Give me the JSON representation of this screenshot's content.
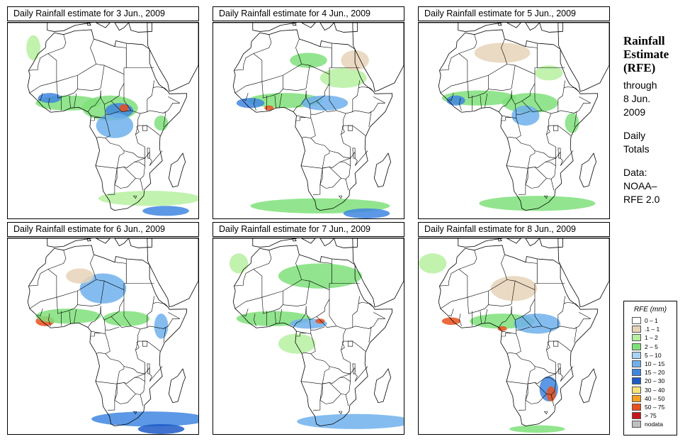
{
  "panels": [
    {
      "title": "Daily Rainfall estimate for  3 Jun., 2009",
      "date": "3 Jun., 2009"
    },
    {
      "title": "Daily Rainfall estimate for  4 Jun., 2009",
      "date": "4 Jun., 2009"
    },
    {
      "title": "Daily Rainfall estimate for  5 Jun., 2009",
      "date": "5 Jun., 2009"
    },
    {
      "title": "Daily Rainfall estimate for  6 Jun., 2009",
      "date": "6 Jun., 2009"
    },
    {
      "title": "Daily Rainfall estimate for  7 Jun., 2009",
      "date": "7 Jun., 2009"
    },
    {
      "title": "Daily Rainfall estimate for  8 Jun., 2009",
      "date": "8 Jun., 2009"
    }
  ],
  "sidebar": {
    "heading": [
      "Rainfall",
      "Estimate",
      "(RFE)"
    ],
    "through_label": "through",
    "through_date": [
      "8 Jun.",
      "2009"
    ],
    "period": [
      "Daily",
      "Totals"
    ],
    "source_label": "Data:",
    "source": [
      "NOAA–",
      "RFE 2.0"
    ]
  },
  "legend": {
    "title": "RFE (mm)",
    "items": [
      {
        "label": "0 – 1",
        "color": "#ffffff"
      },
      {
        "label": ".1 – 1",
        "color": "#e6d3b8"
      },
      {
        "label": "1 – 2",
        "color": "#b6f0a0"
      },
      {
        "label": "2 – 5",
        "color": "#7fe07a"
      },
      {
        "label": "5 – 10",
        "color": "#a8d4f5"
      },
      {
        "label": "10 – 15",
        "color": "#6fb0ec"
      },
      {
        "label": "15 – 20",
        "color": "#3f86e0"
      },
      {
        "label": "20 – 30",
        "color": "#1e5bc8"
      },
      {
        "label": "30 – 40",
        "color": "#f7e27a"
      },
      {
        "label": "40 – 50",
        "color": "#f5a020"
      },
      {
        "label": "50 – 75",
        "color": "#e8501c"
      },
      {
        "label": "> 75",
        "color": "#c8141c"
      },
      {
        "label": "nodata",
        "color": "#c0c0c0"
      }
    ]
  },
  "rain_fields": [
    [
      {
        "lon": 0,
        "lat": 8,
        "rx": 14,
        "ry": 3,
        "cls": 3
      },
      {
        "lon": 18,
        "lat": 6,
        "rx": 12,
        "ry": 5,
        "cls": 3
      },
      {
        "lon": 22,
        "lat": 5,
        "rx": 6,
        "ry": 3,
        "cls": 6
      },
      {
        "lon": 24,
        "lat": 6,
        "rx": 2,
        "ry": 1.5,
        "cls": 10
      },
      {
        "lon": 20,
        "lat": -1,
        "rx": 8,
        "ry": 5,
        "cls": 5
      },
      {
        "lon": -8,
        "lat": 10,
        "rx": 5,
        "ry": 2,
        "cls": 6
      },
      {
        "lon": 40,
        "lat": 0,
        "rx": 3,
        "ry": 3,
        "cls": 3
      },
      {
        "lon": 35,
        "lat": -30,
        "rx": 22,
        "ry": 3,
        "cls": 2
      },
      {
        "lon": 42,
        "lat": -35,
        "rx": 10,
        "ry": 2,
        "cls": 6
      },
      {
        "lon": -15,
        "lat": 30,
        "rx": 3,
        "ry": 5,
        "cls": 2
      }
    ],
    [
      {
        "lon": 5,
        "lat": 9,
        "rx": 16,
        "ry": 3,
        "cls": 3
      },
      {
        "lon": -10,
        "lat": 8,
        "rx": 6,
        "ry": 2,
        "cls": 6
      },
      {
        "lon": -2,
        "lat": 6,
        "rx": 2,
        "ry": 1,
        "cls": 10
      },
      {
        "lon": 22,
        "lat": 8,
        "rx": 10,
        "ry": 3,
        "cls": 5
      },
      {
        "lon": 30,
        "lat": 18,
        "rx": 10,
        "ry": 4,
        "cls": 2
      },
      {
        "lon": 15,
        "lat": 25,
        "rx": 8,
        "ry": 3,
        "cls": 3
      },
      {
        "lon": 20,
        "lat": -33,
        "rx": 30,
        "ry": 3,
        "cls": 3
      },
      {
        "lon": 40,
        "lat": -36,
        "rx": 10,
        "ry": 2,
        "cls": 6
      },
      {
        "lon": 35,
        "lat": 25,
        "rx": 6,
        "ry": 4,
        "cls": 1
      }
    ],
    [
      {
        "lon": 0,
        "lat": 10,
        "rx": 16,
        "ry": 3,
        "cls": 3
      },
      {
        "lon": 22,
        "lat": 8,
        "rx": 12,
        "ry": 4,
        "cls": 3
      },
      {
        "lon": 20,
        "lat": 3,
        "rx": 6,
        "ry": 4,
        "cls": 5
      },
      {
        "lon": -10,
        "lat": 9,
        "rx": 4,
        "ry": 2,
        "cls": 6
      },
      {
        "lon": 30,
        "lat": 20,
        "rx": 6,
        "ry": 3,
        "cls": 2
      },
      {
        "lon": 10,
        "lat": 28,
        "rx": 12,
        "ry": 4,
        "cls": 1
      },
      {
        "lon": 25,
        "lat": -32,
        "rx": 25,
        "ry": 3,
        "cls": 3
      },
      {
        "lon": 40,
        "lat": 0,
        "rx": 3,
        "ry": 4,
        "cls": 3
      }
    ],
    [
      {
        "lon": -10,
        "lat": 7,
        "rx": 4,
        "ry": 2,
        "cls": 10
      },
      {
        "lon": 0,
        "lat": 9,
        "rx": 14,
        "ry": 3,
        "cls": 3
      },
      {
        "lon": 15,
        "lat": 20,
        "rx": 10,
        "ry": 6,
        "cls": 5
      },
      {
        "lon": 25,
        "lat": 8,
        "rx": 10,
        "ry": 3,
        "cls": 3
      },
      {
        "lon": 40,
        "lat": 5,
        "rx": 3,
        "ry": 5,
        "cls": 5
      },
      {
        "lon": 35,
        "lat": -32,
        "rx": 25,
        "ry": 3,
        "cls": 6
      },
      {
        "lon": 40,
        "lat": -36,
        "rx": 10,
        "ry": 2,
        "cls": 7
      },
      {
        "lon": 5,
        "lat": 25,
        "rx": 6,
        "ry": 3,
        "cls": 1
      }
    ],
    [
      {
        "lon": 0,
        "lat": 8,
        "rx": 16,
        "ry": 3,
        "cls": 3
      },
      {
        "lon": 15,
        "lat": 6,
        "rx": 8,
        "ry": 2,
        "cls": 5
      },
      {
        "lon": 20,
        "lat": 7,
        "rx": 2,
        "ry": 1,
        "cls": 10
      },
      {
        "lon": 20,
        "lat": 25,
        "rx": 18,
        "ry": 5,
        "cls": 3
      },
      {
        "lon": 10,
        "lat": -2,
        "rx": 8,
        "ry": 4,
        "cls": 2
      },
      {
        "lon": 35,
        "lat": -33,
        "rx": 25,
        "ry": 3,
        "cls": 5
      },
      {
        "lon": -15,
        "lat": 30,
        "rx": 4,
        "ry": 4,
        "cls": 2
      }
    ],
    [
      {
        "lon": -12,
        "lat": 7,
        "rx": 4,
        "ry": 1.5,
        "cls": 10
      },
      {
        "lon": 10,
        "lat": 7,
        "rx": 14,
        "ry": 3,
        "cls": 3
      },
      {
        "lon": 10,
        "lat": 4,
        "rx": 2,
        "ry": 1,
        "cls": 10
      },
      {
        "lon": 25,
        "lat": 6,
        "rx": 10,
        "ry": 4,
        "cls": 5
      },
      {
        "lon": 30,
        "lat": -20,
        "rx": 4,
        "ry": 5,
        "cls": 6
      },
      {
        "lon": 31,
        "lat": -22,
        "rx": 2,
        "ry": 3,
        "cls": 10
      },
      {
        "lon": 15,
        "lat": 20,
        "rx": 10,
        "ry": 5,
        "cls": 1
      },
      {
        "lon": 25,
        "lat": -36,
        "rx": 12,
        "ry": 1.5,
        "cls": 3
      },
      {
        "lon": -20,
        "lat": 30,
        "rx": 6,
        "ry": 4,
        "cls": 2
      }
    ]
  ]
}
